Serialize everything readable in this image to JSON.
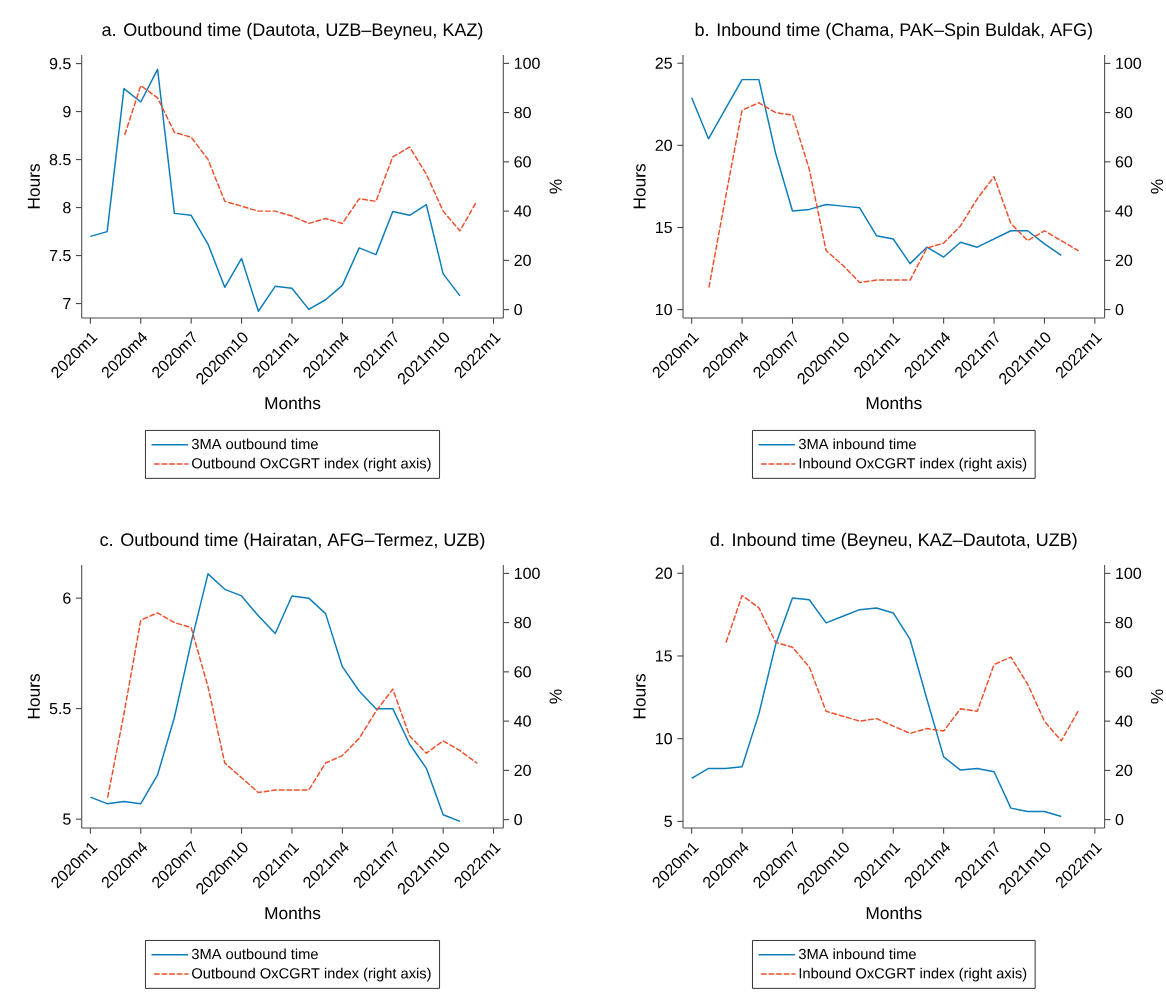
{
  "chart_data": [
    {
      "type": "line",
      "title": "a. Outbound time (Dautota, UZB–Beyneu, KAZ)",
      "xlabel": "Months",
      "ylabel": "Hours",
      "y2label": "%",
      "legend": "bottom",
      "xlim": [
        "2019-12-16",
        "2022-01-19"
      ],
      "xticks": [
        {
          "value": "2020-01",
          "label": "2020m1"
        },
        {
          "value": "2020-04",
          "label": "2020m4"
        },
        {
          "value": "2020-07",
          "label": "2020m7"
        },
        {
          "value": "2020-10",
          "label": "2020m10"
        },
        {
          "value": "2021-01",
          "label": "2021m1"
        },
        {
          "value": "2021-04",
          "label": "2021m4"
        },
        {
          "value": "2021-07",
          "label": "2021m7"
        },
        {
          "value": "2021-10",
          "label": "2021m10"
        },
        {
          "value": "2022-01",
          "label": "2022m1"
        }
      ],
      "ylim": [
        6.85,
        9.59
      ],
      "yticks": [
        7,
        7.5,
        8,
        8.5,
        9,
        9.5
      ],
      "y2lim": [
        -3.4,
        103.4
      ],
      "y2ticks": [
        0,
        20,
        40,
        60,
        80,
        100
      ],
      "series": [
        {
          "name": "3MA outbound time",
          "color": "#0b7dbd",
          "line_style": "solid",
          "x": [
            "2020-01",
            "2020-02",
            "2020-03",
            "2020-04",
            "2020-05",
            "2020-06",
            "2020-07",
            "2020-08",
            "2020-09",
            "2020-10",
            "2020-11",
            "2020-12",
            "2021-01",
            "2021-02",
            "2021-03",
            "2021-04",
            "2021-05",
            "2021-06",
            "2021-07",
            "2021-08",
            "2021-09",
            "2021-10",
            "2021-11"
          ],
          "values": [
            7.7,
            7.75,
            9.24,
            9.1,
            9.44,
            7.94,
            7.92,
            7.62,
            7.17,
            7.47,
            6.92,
            7.18,
            7.16,
            6.94,
            7.04,
            7.19,
            7.58,
            7.51,
            7.96,
            7.92,
            8.03,
            7.31,
            7.08
          ]
        },
        {
          "name": "Outbound OxCGRT index (right axis)",
          "color": "#f04e2a",
          "line_style": "dashed",
          "axis": "y2",
          "x": [
            "2020-03",
            "2020-04",
            "2020-05",
            "2020-06",
            "2020-07",
            "2020-08",
            "2020-09",
            "2020-10",
            "2020-11",
            "2020-12",
            "2021-01",
            "2021-02",
            "2021-03",
            "2021-04",
            "2021-05",
            "2021-06",
            "2021-07",
            "2021-08",
            "2021-09",
            "2021-10",
            "2021-11",
            "2021-12"
          ],
          "values": [
            70,
            91,
            86,
            72,
            70,
            61,
            44,
            42,
            40,
            40,
            38,
            35,
            37,
            35,
            45,
            44,
            62,
            66,
            55,
            40,
            32,
            44
          ]
        }
      ]
    },
    {
      "type": "line",
      "title": "b. Inbound time (Chama, PAK–Spin Buldak, AFG)",
      "xlabel": "Months",
      "ylabel": "Hours",
      "y2label": "%",
      "legend": "bottom",
      "xlim": [
        "2019-12-16",
        "2022-01-19"
      ],
      "xticks": [
        {
          "value": "2020-01",
          "label": "2020m1"
        },
        {
          "value": "2020-04",
          "label": "2020m4"
        },
        {
          "value": "2020-07",
          "label": "2020m7"
        },
        {
          "value": "2020-10",
          "label": "2020m10"
        },
        {
          "value": "2021-01",
          "label": "2021m1"
        },
        {
          "value": "2021-04",
          "label": "2021m4"
        },
        {
          "value": "2021-07",
          "label": "2021m7"
        },
        {
          "value": "2021-10",
          "label": "2021m10"
        },
        {
          "value": "2022-01",
          "label": "2022m1"
        }
      ],
      "ylim": [
        9.49,
        25.5
      ],
      "yticks": [
        10,
        15,
        20,
        25
      ],
      "y2lim": [
        -3.4,
        103.4
      ],
      "y2ticks": [
        0,
        20,
        40,
        60,
        80,
        100
      ],
      "series": [
        {
          "name": "3MA inbound time",
          "color": "#0b7dbd",
          "line_style": "solid",
          "x": [
            "2020-01",
            "2020-02",
            "2020-03",
            "2020-04",
            "2020-05",
            "2020-06",
            "2020-07",
            "2020-08",
            "2020-09",
            "2020-10",
            "2020-11",
            "2020-12",
            "2021-01",
            "2021-02",
            "2021-03",
            "2021-04",
            "2021-05",
            "2021-06",
            "2021-07",
            "2021-08",
            "2021-09",
            "2021-10",
            "2021-11"
          ],
          "values": [
            22.9,
            20.4,
            22.2,
            24.0,
            24.0,
            19.5,
            16.0,
            16.1,
            16.4,
            16.3,
            16.2,
            14.5,
            14.3,
            12.8,
            13.8,
            13.2,
            14.1,
            13.8,
            14.3,
            14.8,
            14.8,
            14.0,
            13.3
          ]
        },
        {
          "name": "Inbound OxCGRT index (right axis)",
          "color": "#f04e2a",
          "line_style": "dashed",
          "axis": "y2",
          "x": [
            "2020-02",
            "2020-03",
            "2020-04",
            "2020-05",
            "2020-06",
            "2020-07",
            "2020-08",
            "2020-09",
            "2020-10",
            "2020-11",
            "2020-12",
            "2021-01",
            "2021-02",
            "2021-03",
            "2021-04",
            "2021-05",
            "2021-06",
            "2021-07",
            "2021-08",
            "2021-09",
            "2021-10",
            "2021-11",
            "2021-12"
          ],
          "values": [
            8,
            45,
            81,
            84,
            80,
            79,
            57,
            24,
            18,
            11,
            12,
            12,
            12,
            25,
            27,
            34,
            45,
            54,
            35,
            28,
            32,
            28,
            24
          ]
        }
      ]
    },
    {
      "type": "line",
      "title": "c. Outbound time (Hairatan, AFG–Termez, UZB)",
      "xlabel": "Months",
      "ylabel": "Hours",
      "y2label": "%",
      "legend": "bottom",
      "xlim": [
        "2019-12-16",
        "2022-01-19"
      ],
      "xticks": [
        {
          "value": "2020-01",
          "label": "2020m1"
        },
        {
          "value": "2020-04",
          "label": "2020m4"
        },
        {
          "value": "2020-07",
          "label": "2020m7"
        },
        {
          "value": "2020-10",
          "label": "2020m10"
        },
        {
          "value": "2021-01",
          "label": "2021m1"
        },
        {
          "value": "2021-04",
          "label": "2021m4"
        },
        {
          "value": "2021-07",
          "label": "2021m7"
        },
        {
          "value": "2021-10",
          "label": "2021m10"
        },
        {
          "value": "2022-01",
          "label": "2022m1"
        }
      ],
      "ylim": [
        4.96,
        6.15
      ],
      "yticks": [
        5,
        5.5,
        6
      ],
      "y2lim": [
        -3.4,
        103.4
      ],
      "y2ticks": [
        0,
        20,
        40,
        60,
        80,
        100
      ],
      "series": [
        {
          "name": "3MA outbound time",
          "color": "#0b7dbd",
          "line_style": "solid",
          "x": [
            "2020-01",
            "2020-02",
            "2020-03",
            "2020-04",
            "2020-05",
            "2020-06",
            "2020-07",
            "2020-08",
            "2020-09",
            "2020-10",
            "2020-11",
            "2020-12",
            "2021-01",
            "2021-02",
            "2021-03",
            "2021-04",
            "2021-05",
            "2021-06",
            "2021-07",
            "2021-08",
            "2021-09",
            "2021-10",
            "2021-11"
          ],
          "values": [
            5.1,
            5.07,
            5.08,
            5.07,
            5.2,
            5.46,
            5.8,
            6.11,
            6.04,
            6.01,
            5.92,
            5.84,
            6.01,
            6.0,
            5.93,
            5.69,
            5.58,
            5.5,
            5.5,
            5.34,
            5.23,
            5.02,
            4.99
          ]
        },
        {
          "name": "Outbound OxCGRT index (right axis)",
          "color": "#f04e2a",
          "line_style": "dashed",
          "axis": "y2",
          "x": [
            "2020-02",
            "2020-03",
            "2020-04",
            "2020-05",
            "2020-06",
            "2020-07",
            "2020-08",
            "2020-09",
            "2020-10",
            "2020-11",
            "2020-12",
            "2021-01",
            "2021-02",
            "2021-03",
            "2021-04",
            "2021-05",
            "2021-06",
            "2021-07",
            "2021-08",
            "2021-09",
            "2021-10",
            "2021-11",
            "2021-12"
          ],
          "values": [
            8,
            43,
            81,
            84,
            80,
            78,
            54,
            23,
            17,
            11,
            12,
            12,
            12,
            23,
            26,
            33,
            44,
            53,
            34,
            27,
            32,
            28,
            23
          ]
        }
      ]
    },
    {
      "type": "line",
      "title": "d. Inbound time (Beyneu, KAZ–Dautota, UZB)",
      "xlabel": "Months",
      "ylabel": "Hours",
      "y2label": "%",
      "legend": "bottom",
      "xlim": [
        "2019-12-16",
        "2022-01-19"
      ],
      "xticks": [
        {
          "value": "2020-01",
          "label": "2020m1"
        },
        {
          "value": "2020-04",
          "label": "2020m4"
        },
        {
          "value": "2020-07",
          "label": "2020m7"
        },
        {
          "value": "2020-10",
          "label": "2020m10"
        },
        {
          "value": "2021-01",
          "label": "2021m1"
        },
        {
          "value": "2021-04",
          "label": "2021m4"
        },
        {
          "value": "2021-07",
          "label": "2021m7"
        },
        {
          "value": "2021-10",
          "label": "2021m10"
        },
        {
          "value": "2022-01",
          "label": "2022m1"
        }
      ],
      "ylim": [
        4.6,
        20.5
      ],
      "yticks": [
        5,
        10,
        15,
        20
      ],
      "y2lim": [
        -3.4,
        103.4
      ],
      "y2ticks": [
        0,
        20,
        40,
        60,
        80,
        100
      ],
      "series": [
        {
          "name": "3MA inbound time",
          "color": "#0b7dbd",
          "line_style": "solid",
          "x": [
            "2020-01",
            "2020-02",
            "2020-03",
            "2020-04",
            "2020-05",
            "2020-06",
            "2020-07",
            "2020-08",
            "2020-09",
            "2020-10",
            "2020-11",
            "2020-12",
            "2021-01",
            "2021-02",
            "2021-03",
            "2021-04",
            "2021-05",
            "2021-06",
            "2021-07",
            "2021-08",
            "2021-09",
            "2021-10",
            "2021-11"
          ],
          "values": [
            7.6,
            8.2,
            8.2,
            8.3,
            11.5,
            15.7,
            18.5,
            18.4,
            17.0,
            17.4,
            17.8,
            17.9,
            17.6,
            16.0,
            12.4,
            8.9,
            8.1,
            8.2,
            8.0,
            5.8,
            5.6,
            5.6,
            5.3
          ]
        },
        {
          "name": "Inbound OxCGRT index (right axis)",
          "color": "#f04e2a",
          "line_style": "dashed",
          "axis": "y2",
          "x": [
            "2020-03",
            "2020-04",
            "2020-05",
            "2020-06",
            "2020-07",
            "2020-08",
            "2020-09",
            "2020-10",
            "2020-11",
            "2020-12",
            "2021-01",
            "2021-02",
            "2021-03",
            "2021-04",
            "2021-05",
            "2021-06",
            "2021-07",
            "2021-08",
            "2021-09",
            "2021-10",
            "2021-11",
            "2021-12"
          ],
          "values": [
            71,
            91,
            86,
            72,
            70,
            62,
            44,
            42,
            40,
            41,
            38,
            35,
            37,
            36,
            45,
            44,
            63,
            66,
            55,
            40,
            32,
            44
          ]
        }
      ]
    }
  ]
}
